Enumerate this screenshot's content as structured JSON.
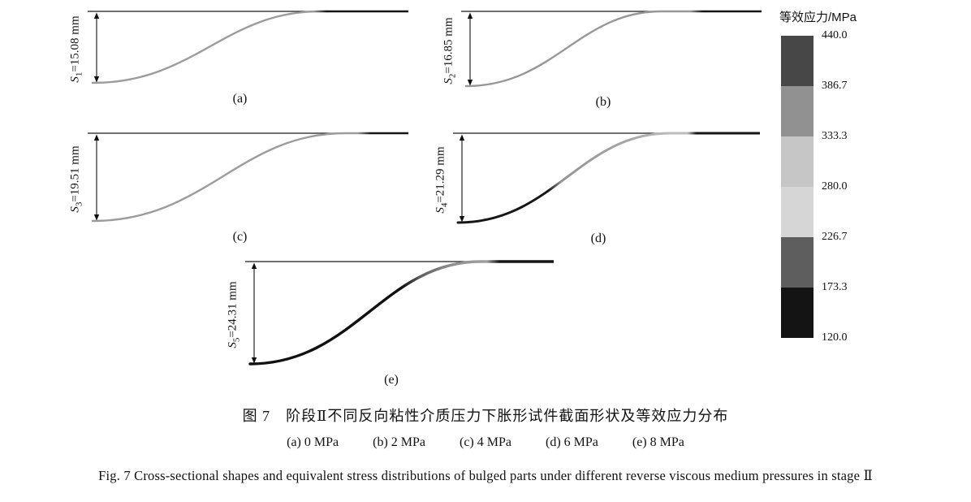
{
  "legend": {
    "title": "等效应力/MPa",
    "tick_labels": [
      "440.0",
      "386.7",
      "333.3",
      "280.0",
      "226.7",
      "173.3",
      "120.0"
    ],
    "segment_colors": [
      "#474747",
      "#919191",
      "#c6c6c6",
      "#d6d6d6",
      "#5e5e5e",
      "#141414"
    ]
  },
  "panels": [
    {
      "id": "a",
      "label": "(a)",
      "depth_var": "S",
      "depth_sub": "1",
      "depth_value": "=15.08 mm",
      "curve": {
        "meet": 0.72,
        "stops": [
          {
            "o": 0,
            "c": "#9c9c9c"
          },
          {
            "o": 0.7,
            "c": "#9c9c9c"
          },
          {
            "o": 0.74,
            "c": "#151515"
          },
          {
            "o": 1,
            "c": "#151515"
          }
        ]
      }
    },
    {
      "id": "b",
      "label": "(b)",
      "depth_var": "S",
      "depth_sub": "2",
      "depth_value": "=16.85 mm",
      "curve": {
        "meet": 0.66,
        "stops": [
          {
            "o": 0,
            "c": "#979797"
          },
          {
            "o": 0.76,
            "c": "#979797"
          },
          {
            "o": 0.8,
            "c": "#151515"
          },
          {
            "o": 1,
            "c": "#151515"
          }
        ]
      }
    },
    {
      "id": "c",
      "label": "(c)",
      "depth_var": "S",
      "depth_sub": "3",
      "depth_value": "=19.51 mm",
      "curve": {
        "meet": 0.8,
        "stops": [
          {
            "o": 0,
            "c": "#9c9c9c"
          },
          {
            "o": 0.84,
            "c": "#9c9c9c"
          },
          {
            "o": 0.88,
            "c": "#151515"
          },
          {
            "o": 1,
            "c": "#151515"
          }
        ]
      }
    },
    {
      "id": "d",
      "label": "(d)",
      "depth_var": "S",
      "depth_sub": "4",
      "depth_value": "=21.29 mm",
      "curve": {
        "meet": 0.7,
        "stops": [
          {
            "o": 0,
            "c": "#161616"
          },
          {
            "o": 0.3,
            "c": "#161616"
          },
          {
            "o": 0.34,
            "c": "#949494"
          },
          {
            "o": 0.56,
            "c": "#a6a6a6"
          },
          {
            "o": 0.7,
            "c": "#bdbdbd"
          },
          {
            "o": 0.76,
            "c": "#bdbdbd"
          },
          {
            "o": 0.79,
            "c": "#151515"
          },
          {
            "o": 1,
            "c": "#151515"
          }
        ]
      }
    },
    {
      "id": "e",
      "label": "(e)",
      "depth_var": "S",
      "depth_sub": "5",
      "depth_value": "=24.31 mm",
      "curve": {
        "meet": 0.76,
        "stops": [
          {
            "o": 0,
            "c": "#111111"
          },
          {
            "o": 0.5,
            "c": "#111111"
          },
          {
            "o": 0.56,
            "c": "#5f5f5f"
          },
          {
            "o": 0.66,
            "c": "#8f8f8f"
          },
          {
            "o": 0.78,
            "c": "#9f9f9f"
          },
          {
            "o": 0.82,
            "c": "#151515"
          },
          {
            "o": 1,
            "c": "#151515"
          }
        ]
      }
    }
  ],
  "caption": {
    "title_cn": "图 7　阶段Ⅱ不同反向粘性介质压力下胀形试件截面形状及等效应力分布",
    "subcaptions": [
      "(a) 0 MPa",
      "(b) 2 MPa",
      "(c) 4 MPa",
      "(d) 6 MPa",
      "(e) 8 MPa"
    ],
    "title_en": "Fig. 7  Cross-sectional shapes and equivalent stress distributions of bulged parts under different reverse viscous medium pressures in stage Ⅱ"
  }
}
